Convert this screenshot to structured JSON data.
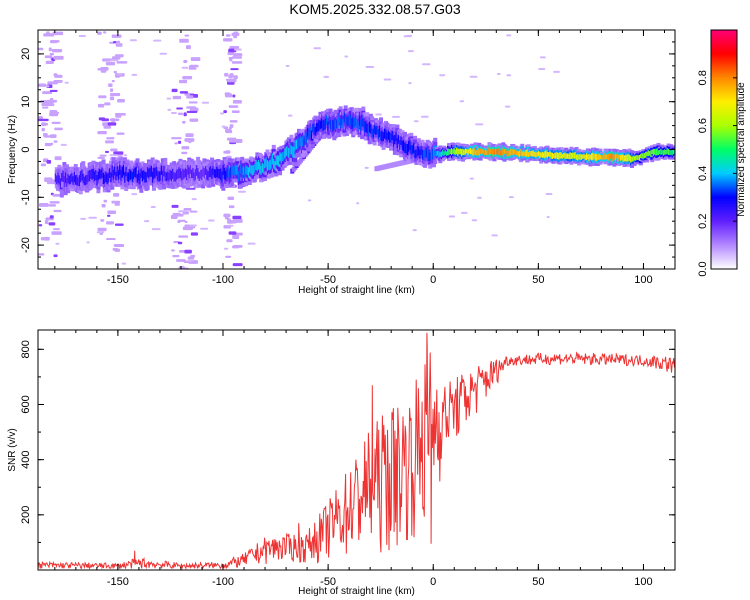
{
  "title": "KOM5.2025.332.08.57.G03",
  "chart_data": [
    {
      "type": "heatmap",
      "panel": "spectrogram",
      "xlabel": "Height of straight line (km)",
      "ylabel": "Frequency (Hz)",
      "xlim": [
        -188,
        115
      ],
      "ylim": [
        -25,
        25
      ],
      "xticks": [
        -150,
        -100,
        -50,
        0,
        50,
        100
      ],
      "yticks": [
        -20,
        -10,
        0,
        10,
        20
      ],
      "colorbar": {
        "label": "Normalized spectral amplitude",
        "range": [
          0.0,
          1.0
        ],
        "ticks": [
          0.0,
          0.2,
          0.4,
          0.6,
          0.8
        ],
        "tick_labels": [
          "0.0",
          "0.2",
          "0.4",
          "0.6",
          "0.8"
        ],
        "colors": [
          "#ffffff",
          "#b388ff",
          "#6020ff",
          "#0000ff",
          "#00ccff",
          "#00ff66",
          "#aaff00",
          "#ffee00",
          "#ff8800",
          "#ff0000",
          "#ff0077"
        ]
      },
      "ridge": [
        {
          "x": -180,
          "f": -6.5,
          "a": 0.22
        },
        {
          "x": -165,
          "f": -6.0,
          "a": 0.25
        },
        {
          "x": -150,
          "f": -5.0,
          "a": 0.28
        },
        {
          "x": -140,
          "f": -5.5,
          "a": 0.3
        },
        {
          "x": -130,
          "f": -5.0,
          "a": 0.25
        },
        {
          "x": -110,
          "f": -5.0,
          "a": 0.2
        },
        {
          "x": -95,
          "f": -5.0,
          "a": 0.35
        },
        {
          "x": -85,
          "f": -4.0,
          "a": 0.4
        },
        {
          "x": -75,
          "f": -2.5,
          "a": 0.4
        },
        {
          "x": -65,
          "f": 0.5,
          "a": 0.38
        },
        {
          "x": -60,
          "f": 3.0,
          "a": 0.33
        },
        {
          "x": -55,
          "f": 5.0,
          "a": 0.3
        },
        {
          "x": -45,
          "f": 6.0,
          "a": 0.35
        },
        {
          "x": -35,
          "f": 5.5,
          "a": 0.33
        },
        {
          "x": -25,
          "f": 3.0,
          "a": 0.3
        },
        {
          "x": -15,
          "f": 1.5,
          "a": 0.3
        },
        {
          "x": -8,
          "f": -1.0,
          "a": 0.3
        },
        {
          "x": 0,
          "f": -1.0,
          "a": 0.35
        },
        {
          "x": 10,
          "f": -0.5,
          "a": 0.6
        },
        {
          "x": 20,
          "f": -0.5,
          "a": 0.75
        },
        {
          "x": 30,
          "f": -0.5,
          "a": 0.8
        },
        {
          "x": 50,
          "f": -1.0,
          "a": 0.7
        },
        {
          "x": 70,
          "f": -1.5,
          "a": 0.65
        },
        {
          "x": 85,
          "f": -1.5,
          "a": 0.8
        },
        {
          "x": 95,
          "f": -2.0,
          "a": 0.6
        },
        {
          "x": 105,
          "f": -0.5,
          "a": 0.55
        },
        {
          "x": 115,
          "f": -0.5,
          "a": 0.5
        }
      ],
      "speckle_bands": [
        {
          "x": [
            -188,
            -180
          ],
          "f": [
            -22,
            25
          ]
        },
        {
          "x": [
            -160,
            -150
          ],
          "f": [
            -25,
            25
          ]
        },
        {
          "x": [
            -125,
            -115
          ],
          "f": [
            -25,
            25
          ]
        },
        {
          "x": [
            -100,
            -95
          ],
          "f": [
            -25,
            25
          ]
        }
      ]
    },
    {
      "type": "line",
      "panel": "snr",
      "xlabel": "Height of straight line (km)",
      "ylabel": "SNR (v/v)",
      "xlim": [
        -188,
        115
      ],
      "ylim": [
        0,
        870
      ],
      "xticks": [
        -150,
        -100,
        -50,
        0,
        50,
        100
      ],
      "yticks": [
        200,
        400,
        600,
        800
      ],
      "color": "#ee3333",
      "envelope": [
        {
          "x": -188,
          "lo": 5,
          "hi": 30
        },
        {
          "x": -150,
          "lo": 5,
          "hi": 25
        },
        {
          "x": -140,
          "lo": 5,
          "hi": 45
        },
        {
          "x": -120,
          "lo": 5,
          "hi": 25
        },
        {
          "x": -100,
          "lo": 5,
          "hi": 30
        },
        {
          "x": -90,
          "lo": 10,
          "hi": 60
        },
        {
          "x": -80,
          "lo": 20,
          "hi": 120
        },
        {
          "x": -70,
          "lo": 30,
          "hi": 130
        },
        {
          "x": -60,
          "lo": 20,
          "hi": 140
        },
        {
          "x": -50,
          "lo": 30,
          "hi": 250
        },
        {
          "x": -40,
          "lo": 40,
          "hi": 380
        },
        {
          "x": -30,
          "lo": 40,
          "hi": 520
        },
        {
          "x": -20,
          "lo": 60,
          "hi": 600
        },
        {
          "x": -10,
          "lo": 100,
          "hi": 650
        },
        {
          "x": -2,
          "lo": 100,
          "hi": 860
        },
        {
          "x": 5,
          "lo": 400,
          "hi": 680
        },
        {
          "x": 15,
          "lo": 500,
          "hi": 720
        },
        {
          "x": 25,
          "lo": 600,
          "hi": 760
        },
        {
          "x": 35,
          "lo": 740,
          "hi": 780
        },
        {
          "x": 60,
          "lo": 745,
          "hi": 790
        },
        {
          "x": 100,
          "lo": 740,
          "hi": 780
        },
        {
          "x": 110,
          "lo": 720,
          "hi": 780
        },
        {
          "x": 115,
          "lo": 710,
          "hi": 770
        }
      ],
      "spikes": [
        {
          "x": -142,
          "y": 70
        },
        {
          "x": -64,
          "y": 170
        },
        {
          "x": -29,
          "y": 670
        },
        {
          "x": -3,
          "y": 860
        },
        {
          "x": -1,
          "y": 95
        }
      ]
    }
  ]
}
